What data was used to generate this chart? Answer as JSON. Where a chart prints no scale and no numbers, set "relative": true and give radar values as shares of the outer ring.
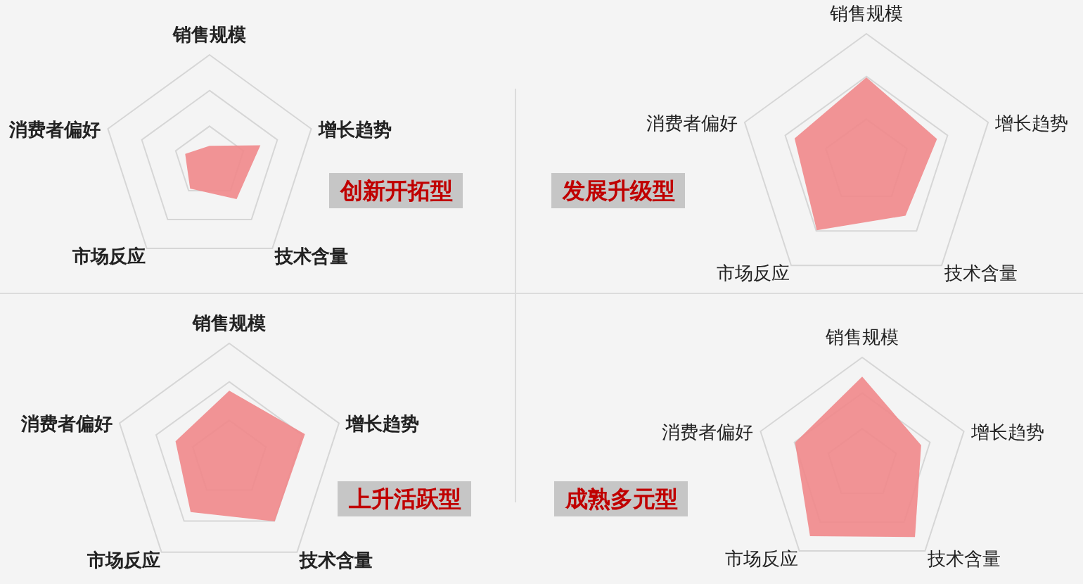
{
  "chart_data": [
    {
      "type": "radar",
      "title": "创新开拓型",
      "categories": [
        "销售规模",
        "增长趋势",
        "技术含量",
        "市场反应",
        "消费者偏好"
      ],
      "relative": true,
      "grid": true,
      "series": [
        {
          "color": "#f08a8c",
          "values": [
            0.15,
            0.5,
            0.43,
            0.31,
            0.24
          ]
        }
      ]
    },
    {
      "type": "radar",
      "title": "发展升级型",
      "categories": [
        "销售规模",
        "增长趋势",
        "技术含量",
        "市场反应",
        "消费者偏好"
      ],
      "relative": true,
      "grid": true,
      "series": [
        {
          "color": "#f08a8c",
          "values": [
            0.66,
            0.58,
            0.52,
            0.66,
            0.59
          ]
        }
      ]
    },
    {
      "type": "radar",
      "title": "上升活跃型",
      "categories": [
        "销售规模",
        "增长趋势",
        "技术含量",
        "市场反应",
        "消费者偏好"
      ],
      "relative": true,
      "grid": true,
      "series": [
        {
          "color": "#f08a8c",
          "values": [
            0.59,
            0.69,
            0.67,
            0.57,
            0.49
          ]
        }
      ]
    },
    {
      "type": "radar",
      "title": "成熟多元型",
      "categories": [
        "销售规模",
        "增长趋势",
        "技术含量",
        "市场反应",
        "消费者偏好"
      ],
      "relative": true,
      "grid": true,
      "series": [
        {
          "color": "#f08a8c",
          "values": [
            0.82,
            0.58,
            0.84,
            0.83,
            0.66
          ]
        }
      ]
    }
  ]
}
